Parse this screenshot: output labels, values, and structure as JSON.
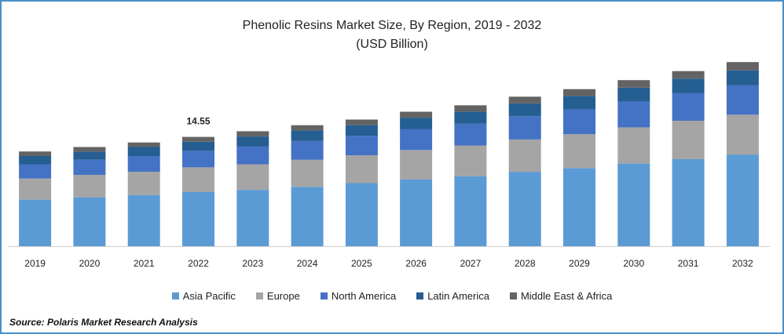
{
  "header": {
    "title": "Phenolic Resins Market Size, By Region, 2019 - 2032",
    "subtitle": "(USD Billion)"
  },
  "source": "Source: Polaris Market Research Analysis",
  "chart_data": {
    "type": "bar",
    "stacked": true,
    "title": "Phenolic Resins Market Size, By Region, 2019 - 2032",
    "subtitle": "(USD Billion)",
    "xlabel": "",
    "ylabel": "",
    "ylim": [
      0,
      24
    ],
    "grid": false,
    "legend_position": "bottom",
    "categories": [
      "2019",
      "2020",
      "2021",
      "2022",
      "2023",
      "2024",
      "2025",
      "2026",
      "2027",
      "2028",
      "2029",
      "2030",
      "2031",
      "2032"
    ],
    "series": [
      {
        "name": "Asia Pacific",
        "color": "#5b9bd5",
        "values": [
          6.2,
          6.5,
          6.8,
          7.2,
          7.5,
          7.9,
          8.4,
          8.9,
          9.3,
          9.9,
          10.4,
          11.0,
          11.6,
          12.2
        ]
      },
      {
        "name": "Europe",
        "color": "#a5a5a5",
        "values": [
          2.8,
          3.0,
          3.1,
          3.3,
          3.4,
          3.6,
          3.7,
          3.9,
          4.1,
          4.3,
          4.5,
          4.8,
          5.1,
          5.3
        ]
      },
      {
        "name": "North America",
        "color": "#4472c4",
        "values": [
          1.9,
          2.0,
          2.1,
          2.2,
          2.4,
          2.5,
          2.6,
          2.8,
          2.9,
          3.1,
          3.3,
          3.5,
          3.7,
          3.9
        ]
      },
      {
        "name": "Latin America",
        "color": "#255e91",
        "values": [
          1.1,
          1.1,
          1.2,
          1.2,
          1.3,
          1.4,
          1.4,
          1.5,
          1.6,
          1.7,
          1.8,
          1.8,
          1.9,
          2.0
        ]
      },
      {
        "name": "Middle East & Africa",
        "color": "#636363",
        "values": [
          0.6,
          0.6,
          0.6,
          0.65,
          0.7,
          0.7,
          0.75,
          0.8,
          0.85,
          0.9,
          0.9,
          1.0,
          1.0,
          1.1
        ]
      }
    ],
    "annotations": [
      {
        "category": "2022",
        "text": "14.55"
      }
    ]
  }
}
